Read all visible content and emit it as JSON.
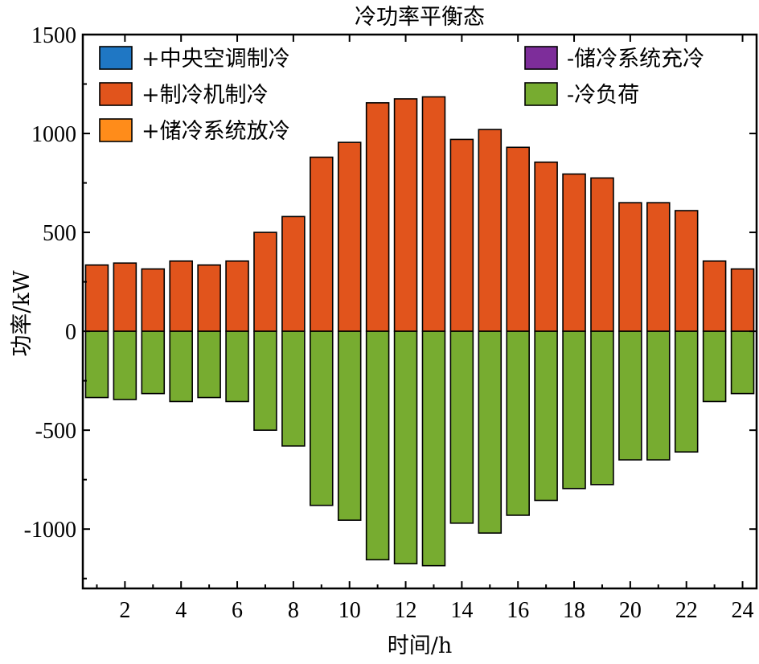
{
  "chart_data": {
    "type": "bar",
    "title": "冷功率平衡态",
    "xlabel": "时间/h",
    "ylabel": "功率/kW",
    "ylim": [
      -1300,
      1500
    ],
    "xlim": [
      0.5,
      24.5
    ],
    "yticks": [
      -1000,
      -500,
      0,
      500,
      1000,
      1500
    ],
    "yticklabels": [
      "-1000",
      "-500",
      "0",
      "500",
      "1000",
      "1500"
    ],
    "xticks": [
      2,
      4,
      6,
      8,
      10,
      12,
      14,
      16,
      18,
      20,
      22,
      24
    ],
    "xticklabels": [
      "2",
      "4",
      "6",
      "8",
      "10",
      "12",
      "14",
      "16",
      "18",
      "20",
      "22",
      "24"
    ],
    "categories": [
      1,
      2,
      3,
      4,
      5,
      6,
      7,
      8,
      9,
      10,
      11,
      12,
      13,
      14,
      15,
      16,
      17,
      18,
      19,
      20,
      21,
      22,
      23,
      24
    ],
    "legend_position": "top",
    "series": [
      {
        "name": "+中央空调制冷",
        "color": "#1f77c4",
        "values": [
          0,
          0,
          0,
          0,
          0,
          0,
          0,
          0,
          0,
          0,
          0,
          0,
          0,
          0,
          0,
          0,
          0,
          0,
          0,
          0,
          0,
          0,
          0,
          0
        ]
      },
      {
        "name": "+制冷机制冷",
        "color": "#e1541c",
        "values": [
          335,
          345,
          315,
          355,
          335,
          355,
          500,
          580,
          880,
          955,
          1155,
          1175,
          1185,
          970,
          1020,
          930,
          855,
          795,
          775,
          650,
          650,
          610,
          355,
          315
        ]
      },
      {
        "name": "+储冷系统放冷",
        "color": "#ff8c1a",
        "values": [
          0,
          0,
          0,
          0,
          0,
          0,
          0,
          0,
          0,
          0,
          0,
          0,
          0,
          0,
          0,
          0,
          0,
          0,
          0,
          0,
          0,
          0,
          0,
          0
        ]
      },
      {
        "name": "-储冷系统充冷",
        "color": "#7d2d9a",
        "values": [
          0,
          0,
          0,
          0,
          0,
          0,
          0,
          0,
          0,
          0,
          0,
          0,
          0,
          0,
          0,
          0,
          0,
          0,
          0,
          0,
          0,
          0,
          0,
          0
        ]
      },
      {
        "name": "-冷负荷",
        "color": "#77ac30",
        "values": [
          -335,
          -345,
          -315,
          -355,
          -335,
          -355,
          -500,
          -580,
          -880,
          -955,
          -1155,
          -1175,
          -1185,
          -970,
          -1020,
          -930,
          -855,
          -795,
          -775,
          -650,
          -650,
          -610,
          -355,
          -315
        ]
      }
    ]
  }
}
